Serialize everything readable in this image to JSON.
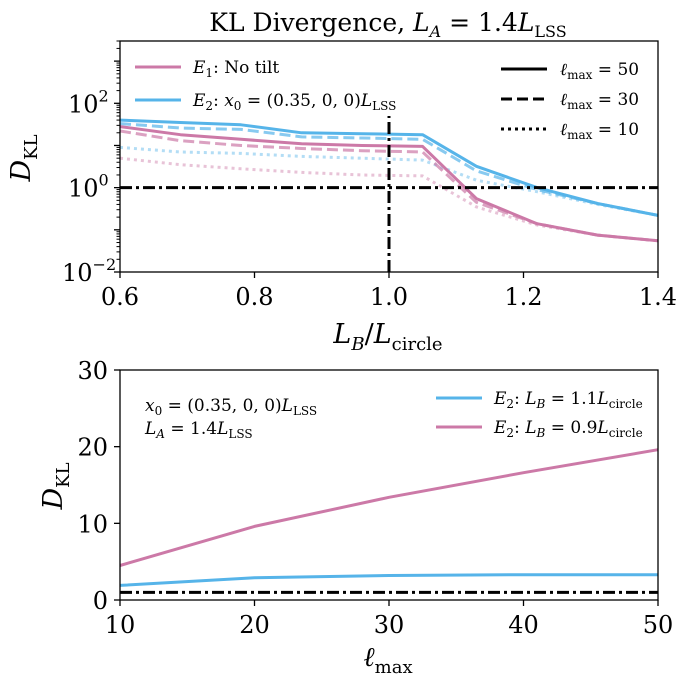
{
  "figure": {
    "colors": {
      "E1": "#cc79a7",
      "E2": "#56b4e9",
      "ref": "#000000"
    }
  },
  "top": {
    "title": "KL Divergence, L_A = 1.4 L_LSS",
    "xlabel": "L_B / L_circle",
    "ylabel": "D_KL",
    "xticks": [
      "0.6",
      "0.8",
      "1.0",
      "1.2",
      "1.4"
    ],
    "yticks": [
      "10^2",
      "10^0",
      "10^-2"
    ],
    "legend_series": [
      "E_1: No tilt",
      "E_2: x_0 = (0.35, 0, 0) L_LSS"
    ],
    "legend_styles": [
      "ℓ_max = 50",
      "ℓ_max = 30",
      "ℓ_max = 10"
    ]
  },
  "bottom": {
    "xlabel": "ℓ_max",
    "ylabel": "D_KL",
    "xticks": [
      "10",
      "20",
      "30",
      "40",
      "50"
    ],
    "yticks": [
      "0",
      "10",
      "20",
      "30"
    ],
    "annotation": [
      "x_0 = (0.35, 0, 0) L_LSS",
      "L_A = 1.4 L_LSS"
    ],
    "legend": [
      "E_2: L_B = 1.1 L_circle",
      "E_2: L_B = 0.9 L_circle"
    ]
  },
  "chart_data": [
    {
      "type": "line",
      "title": "KL Divergence, L_A = 1.4 L_LSS",
      "xlabel": "L_B / L_circle",
      "ylabel": "D_KL",
      "xlim": [
        0.6,
        1.4
      ],
      "ylim": [
        0.01,
        3000
      ],
      "yscale": "log",
      "x": [
        0.6,
        0.69,
        0.78,
        0.87,
        0.96,
        1.05,
        1.13,
        1.22,
        1.31,
        1.4
      ],
      "series": [
        {
          "name": "E_1: No tilt",
          "lmax": 50,
          "style": "solid",
          "color": "E1",
          "values": [
            28,
            18,
            14,
            11,
            10,
            9.5,
            0.55,
            0.14,
            0.075,
            0.055
          ]
        },
        {
          "name": "E_1: No tilt",
          "lmax": 30,
          "style": "dashed",
          "color": "E1",
          "values": [
            22,
            13,
            10,
            8.5,
            7.5,
            7,
            0.45,
            0.14,
            0.075,
            0.055
          ]
        },
        {
          "name": "E_1: No tilt",
          "lmax": 10,
          "style": "dotted",
          "color": "E1",
          "values": [
            5,
            3.5,
            2.8,
            2.3,
            2.0,
            1.9,
            0.35,
            0.13,
            0.075,
            0.055
          ]
        },
        {
          "name": "E_2: x_0 = (0.35, 0, 0) L_LSS",
          "lmax": 50,
          "style": "solid",
          "color": "E2",
          "values": [
            40,
            35,
            31,
            20,
            19,
            18,
            3.2,
            1.0,
            0.42,
            0.22
          ]
        },
        {
          "name": "E_2: x_0 = (0.35, 0, 0) L_LSS",
          "lmax": 30,
          "style": "dashed",
          "color": "E2",
          "values": [
            33,
            26,
            24,
            16,
            15,
            14,
            2.5,
            0.9,
            0.42,
            0.22
          ]
        },
        {
          "name": "E_2: x_0 = (0.35, 0, 0) L_LSS",
          "lmax": 10,
          "style": "dotted",
          "color": "E2",
          "values": [
            9,
            7,
            6.5,
            5.5,
            5,
            4.5,
            1.5,
            0.8,
            0.4,
            0.22
          ]
        }
      ],
      "reference_lines": [
        {
          "orientation": "horizontal",
          "value": 1,
          "style": "dashdot"
        },
        {
          "orientation": "vertical",
          "value": 1.0,
          "style": "dashdot",
          "ymax": 50
        }
      ],
      "legend_placement": "top"
    },
    {
      "type": "line",
      "xlabel": "ℓ_max",
      "ylabel": "D_KL",
      "xlim": [
        10,
        50
      ],
      "ylim": [
        0,
        30
      ],
      "x": [
        10,
        20,
        30,
        40,
        50
      ],
      "series": [
        {
          "name": "E_2: L_B = 1.1 L_circle",
          "color": "E2",
          "values": [
            1.9,
            2.9,
            3.2,
            3.3,
            3.3
          ]
        },
        {
          "name": "E_2: L_B = 0.9 L_circle",
          "color": "E1",
          "values": [
            4.5,
            9.6,
            13.4,
            16.6,
            19.6
          ]
        }
      ],
      "reference_lines": [
        {
          "orientation": "horizontal",
          "value": 1,
          "style": "dashdot"
        }
      ],
      "legend_placement": "top-right"
    }
  ]
}
